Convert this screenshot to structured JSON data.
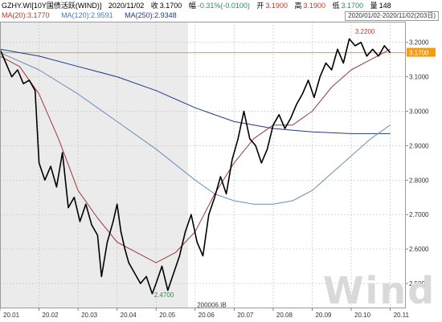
{
  "header": {
    "ticker": "GZHY.WI[10Y国债活跃(WIND)]",
    "date": "2020/11/02",
    "close_label": "收",
    "close_value": "3.1700",
    "change_label": "幅",
    "change_value": "-0.31%(-0.0100)",
    "open_label": "开",
    "open_value": "3.1900",
    "high_label": "高",
    "high_value": "3.1900",
    "low_label": "低",
    "low_value": "3.1700",
    "volume_label": "量",
    "volume_value": "148",
    "range": "2020/01/02-2020/11/02(203日)"
  },
  "ma_legend": [
    {
      "label": "MA(20):",
      "value": "3.1770",
      "color": "#c0392b"
    },
    {
      "label": "MA(120):",
      "value": "2.9591",
      "color": "#4a7bb5"
    },
    {
      "label": "MA(250):",
      "value": "2.9348",
      "color": "#1f3a93"
    }
  ],
  "watermark": "Wind",
  "colors": {
    "price_line": "#000000",
    "ma20": "#9c3b3b",
    "ma120": "#6b8fb5",
    "ma250": "#1f3a8a",
    "reference_line": "#f39c12",
    "last_price_tag": "#f39c12",
    "shade": "#ebebeb",
    "grid": "#c8c8c8"
  },
  "chart_data": {
    "type": "line",
    "title": "",
    "x": [
      "20.01",
      "20.02",
      "20.03",
      "20.04",
      "20.05",
      "20.06",
      "20.07",
      "20.08",
      "20.09",
      "20.10",
      "20.11"
    ],
    "x_tick_labels": [
      "20.01",
      "20.02",
      "20.03",
      "20.04",
      "20.05",
      "20.06",
      "20.07",
      "20.08",
      "20.09",
      "20.10",
      "20.11"
    ],
    "y_ticks": [
      2.5,
      2.6,
      2.7,
      2.8,
      2.9,
      3.0,
      3.1,
      3.2
    ],
    "y_tick_labels": [
      "2.5000",
      "2.6000",
      "2.7000",
      "2.8000",
      "2.9000",
      "3.0000",
      "3.1000",
      "3.2000"
    ],
    "ylim": [
      2.43,
      3.26
    ],
    "xlim": [
      0,
      10.4
    ],
    "grid": true,
    "shaded_range": [
      0,
      4.82
    ],
    "reference_line": 3.17,
    "last_price_label": "3.1700",
    "annotations": [
      {
        "text": "3.2200",
        "x": 9.1,
        "y": 3.22,
        "color": "#c0392b"
      },
      {
        "text": "2.4700",
        "x": 3.95,
        "y": 2.47,
        "color": "#2e8b57"
      },
      {
        "text": "200006.IB",
        "x": 5.05,
        "y": 2.44,
        "color": "#333333"
      }
    ],
    "series": [
      {
        "name": "MA(250)",
        "x": [
          0,
          1,
          2,
          3,
          4,
          5,
          6,
          7,
          8,
          9,
          10
        ],
        "values": [
          3.18,
          3.16,
          3.13,
          3.1,
          3.06,
          3.01,
          2.97,
          2.95,
          2.94,
          2.935,
          2.935
        ]
      },
      {
        "name": "MA(120)",
        "x": [
          0,
          1,
          2,
          3,
          4,
          5,
          5.5,
          6,
          6.5,
          7,
          7.5,
          8,
          8.5,
          9,
          9.5,
          10
        ],
        "values": [
          3.17,
          3.12,
          3.05,
          2.97,
          2.89,
          2.8,
          2.76,
          2.74,
          2.73,
          2.73,
          2.74,
          2.77,
          2.82,
          2.87,
          2.92,
          2.96
        ]
      },
      {
        "name": "MA(20)",
        "x": [
          0,
          0.5,
          1,
          1.5,
          2,
          2.5,
          3,
          3.5,
          4,
          4.5,
          5,
          5.5,
          6,
          6.5,
          7,
          7.5,
          8,
          8.5,
          9,
          9.5,
          10
        ],
        "values": [
          3.16,
          3.13,
          3.05,
          2.92,
          2.77,
          2.69,
          2.62,
          2.59,
          2.56,
          2.59,
          2.65,
          2.76,
          2.85,
          2.92,
          2.96,
          2.96,
          3.0,
          3.07,
          3.12,
          3.15,
          3.18
        ]
      },
      {
        "name": "Price",
        "x": [
          0,
          0.15,
          0.3,
          0.45,
          0.6,
          0.75,
          0.9,
          1.0,
          1.15,
          1.3,
          1.45,
          1.6,
          1.75,
          1.9,
          2.05,
          2.2,
          2.35,
          2.5,
          2.6,
          2.75,
          2.9,
          3.0,
          3.1,
          3.2,
          3.3,
          3.45,
          3.6,
          3.75,
          3.9,
          4.0,
          4.15,
          4.3,
          4.45,
          4.6,
          4.75,
          4.9,
          5.05,
          5.2,
          5.35,
          5.5,
          5.65,
          5.8,
          5.95,
          6.1,
          6.25,
          6.4,
          6.55,
          6.7,
          6.85,
          7.0,
          7.15,
          7.3,
          7.45,
          7.6,
          7.75,
          7.9,
          8.05,
          8.2,
          8.35,
          8.5,
          8.65,
          8.8,
          8.95,
          9.1,
          9.25,
          9.4,
          9.55,
          9.7,
          9.85,
          10.0
        ],
        "values": [
          3.18,
          3.14,
          3.1,
          3.12,
          3.08,
          3.09,
          3.06,
          2.85,
          2.8,
          2.84,
          2.78,
          2.88,
          2.72,
          2.75,
          2.68,
          2.73,
          2.67,
          2.64,
          2.52,
          2.62,
          2.68,
          2.73,
          2.65,
          2.6,
          2.56,
          2.53,
          2.5,
          2.52,
          2.47,
          2.5,
          2.55,
          2.48,
          2.53,
          2.58,
          2.65,
          2.7,
          2.62,
          2.58,
          2.7,
          2.75,
          2.81,
          2.76,
          2.86,
          2.92,
          3.0,
          2.92,
          2.9,
          2.85,
          2.89,
          2.96,
          2.99,
          2.95,
          2.98,
          3.02,
          3.05,
          3.09,
          3.04,
          3.1,
          3.14,
          3.12,
          3.18,
          3.14,
          3.21,
          3.19,
          3.2,
          3.16,
          3.18,
          3.16,
          3.19,
          3.17
        ]
      }
    ]
  }
}
